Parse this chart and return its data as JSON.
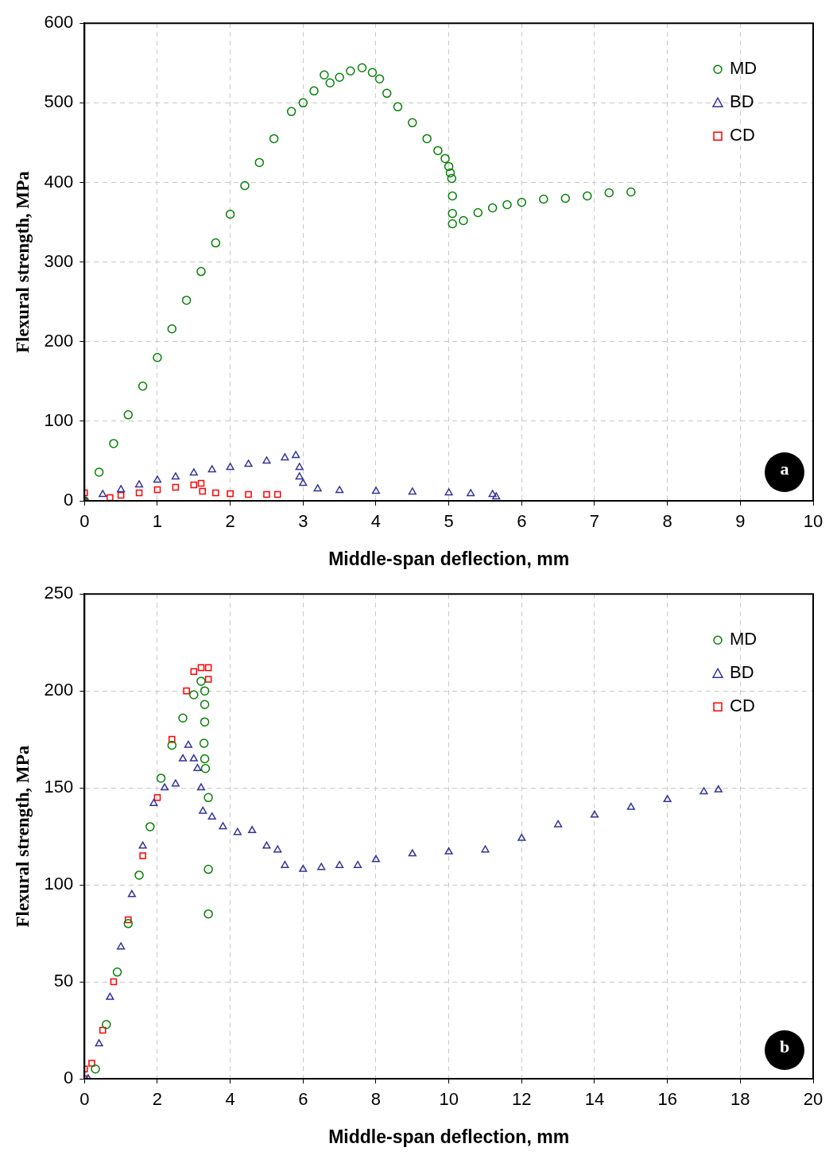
{
  "chart_data": [
    {
      "type": "scatter",
      "xlabel": "Middle-span deflection, mm",
      "ylabel": "Flexural strength, MPa",
      "xlim": [
        0,
        10
      ],
      "xticks": [
        0,
        1,
        2,
        3,
        4,
        5,
        6,
        7,
        8,
        9,
        10
      ],
      "ylim": [
        0,
        600
      ],
      "yticks": [
        0,
        100,
        200,
        300,
        400,
        500,
        600
      ],
      "grid": true,
      "legend": "top right",
      "annotations": [
        "a"
      ],
      "series": [
        {
          "name": "MD",
          "color": "#008000",
          "marker": "circle",
          "x": [
            0,
            0.2,
            0.4,
            0.6,
            0.8,
            1.0,
            1.2,
            1.4,
            1.6,
            1.8,
            2.0,
            2.2,
            2.4,
            2.6,
            2.84,
            3.0,
            3.15,
            3.29,
            3.37,
            3.5,
            3.65,
            3.81,
            3.95,
            4.05,
            4.15,
            4.3,
            4.5,
            4.7,
            4.85,
            4.95,
            5.0,
            5.02,
            5.04,
            5.05,
            5.05,
            5.05,
            5.2,
            5.4,
            5.6,
            5.8,
            6.0,
            6.3,
            6.6,
            6.9,
            7.2,
            7.5
          ],
          "values": [
            0,
            36,
            72,
            108,
            144,
            180,
            216,
            252,
            288,
            324,
            360,
            396,
            425,
            455,
            489,
            500,
            515,
            535,
            525,
            532,
            540,
            544,
            538,
            530,
            512,
            495,
            475,
            455,
            440,
            430,
            420,
            412,
            405,
            383,
            361,
            348,
            352,
            362,
            368,
            372,
            375,
            379,
            380,
            383,
            387,
            388
          ]
        },
        {
          "name": "BD",
          "color": "#333399",
          "marker": "triangle",
          "x": [
            0,
            0.25,
            0.5,
            0.75,
            1.0,
            1.25,
            1.5,
            1.75,
            2.0,
            2.25,
            2.5,
            2.75,
            2.9,
            2.95,
            2.95,
            3.0,
            3.2,
            3.5,
            4.0,
            4.5,
            5.0,
            5.3,
            5.6,
            5.65
          ],
          "values": [
            0,
            8,
            14,
            20,
            26,
            30,
            35,
            39,
            42,
            46,
            50,
            54,
            57,
            42,
            30,
            22,
            15,
            13,
            12,
            11,
            10,
            9,
            8,
            5
          ]
        },
        {
          "name": "CD",
          "color": "#ff0000",
          "marker": "square",
          "x": [
            0,
            0,
            0.35,
            0.5,
            0.75,
            1.0,
            1.25,
            1.5,
            1.6,
            1.62,
            1.8,
            2.0,
            2.25,
            2.5,
            2.65
          ],
          "values": [
            10,
            0,
            4,
            7,
            10,
            14,
            17,
            20,
            22,
            12,
            10,
            9,
            8,
            8,
            8
          ]
        }
      ]
    },
    {
      "type": "scatter",
      "xlabel": "Middle-span deflection, mm",
      "ylabel": "Flexural strength, MPa",
      "xlim": [
        0,
        20
      ],
      "xticks": [
        0,
        2,
        4,
        6,
        8,
        10,
        12,
        14,
        16,
        18,
        20
      ],
      "ylim": [
        0,
        250
      ],
      "yticks": [
        0,
        50,
        100,
        150,
        200,
        250
      ],
      "grid": true,
      "legend": "top right",
      "annotations": [
        "b"
      ],
      "series": [
        {
          "name": "MD",
          "color": "#008000",
          "marker": "circle",
          "x": [
            0.3,
            0.6,
            0.9,
            1.2,
            1.5,
            1.8,
            2.1,
            2.4,
            2.7,
            3.0,
            3.2,
            3.3,
            3.3,
            3.3,
            3.28,
            3.3,
            3.32,
            3.4,
            3.4,
            3.4
          ],
          "values": [
            5,
            28,
            55,
            80,
            105,
            130,
            155,
            172,
            186,
            198,
            205,
            200,
            193,
            184,
            173,
            165,
            160,
            145,
            108,
            85
          ]
        },
        {
          "name": "BD",
          "color": "#333399",
          "marker": "triangle",
          "x": [
            0.1,
            0.4,
            0.7,
            1.0,
            1.3,
            1.6,
            1.9,
            2.2,
            2.5,
            2.7,
            2.85,
            3.0,
            3.1,
            3.2,
            3.25,
            3.5,
            3.8,
            4.2,
            4.6,
            5.0,
            5.3,
            5.5,
            6.0,
            6.5,
            7.0,
            7.5,
            8.0,
            9.0,
            10.0,
            11.0,
            12.0,
            13.0,
            14.0,
            15.0,
            16.0,
            17.0,
            17.4
          ],
          "values": [
            0,
            18,
            42,
            68,
            95,
            120,
            142,
            150,
            152,
            165,
            172,
            165,
            160,
            150,
            138,
            135,
            130,
            127,
            128,
            120,
            118,
            110,
            108,
            109,
            110,
            110,
            113,
            116,
            117,
            118,
            124,
            131,
            136,
            140,
            144,
            148,
            149
          ]
        },
        {
          "name": "CD",
          "color": "#ff0000",
          "marker": "square",
          "x": [
            0,
            0,
            0.2,
            0.5,
            0.8,
            1.2,
            1.6,
            2.0,
            2.4,
            2.8,
            3.0,
            3.2,
            3.4,
            3.4
          ],
          "values": [
            0,
            5,
            8,
            25,
            50,
            82,
            115,
            145,
            175,
            200,
            210,
            212,
            212,
            206
          ]
        }
      ]
    }
  ]
}
